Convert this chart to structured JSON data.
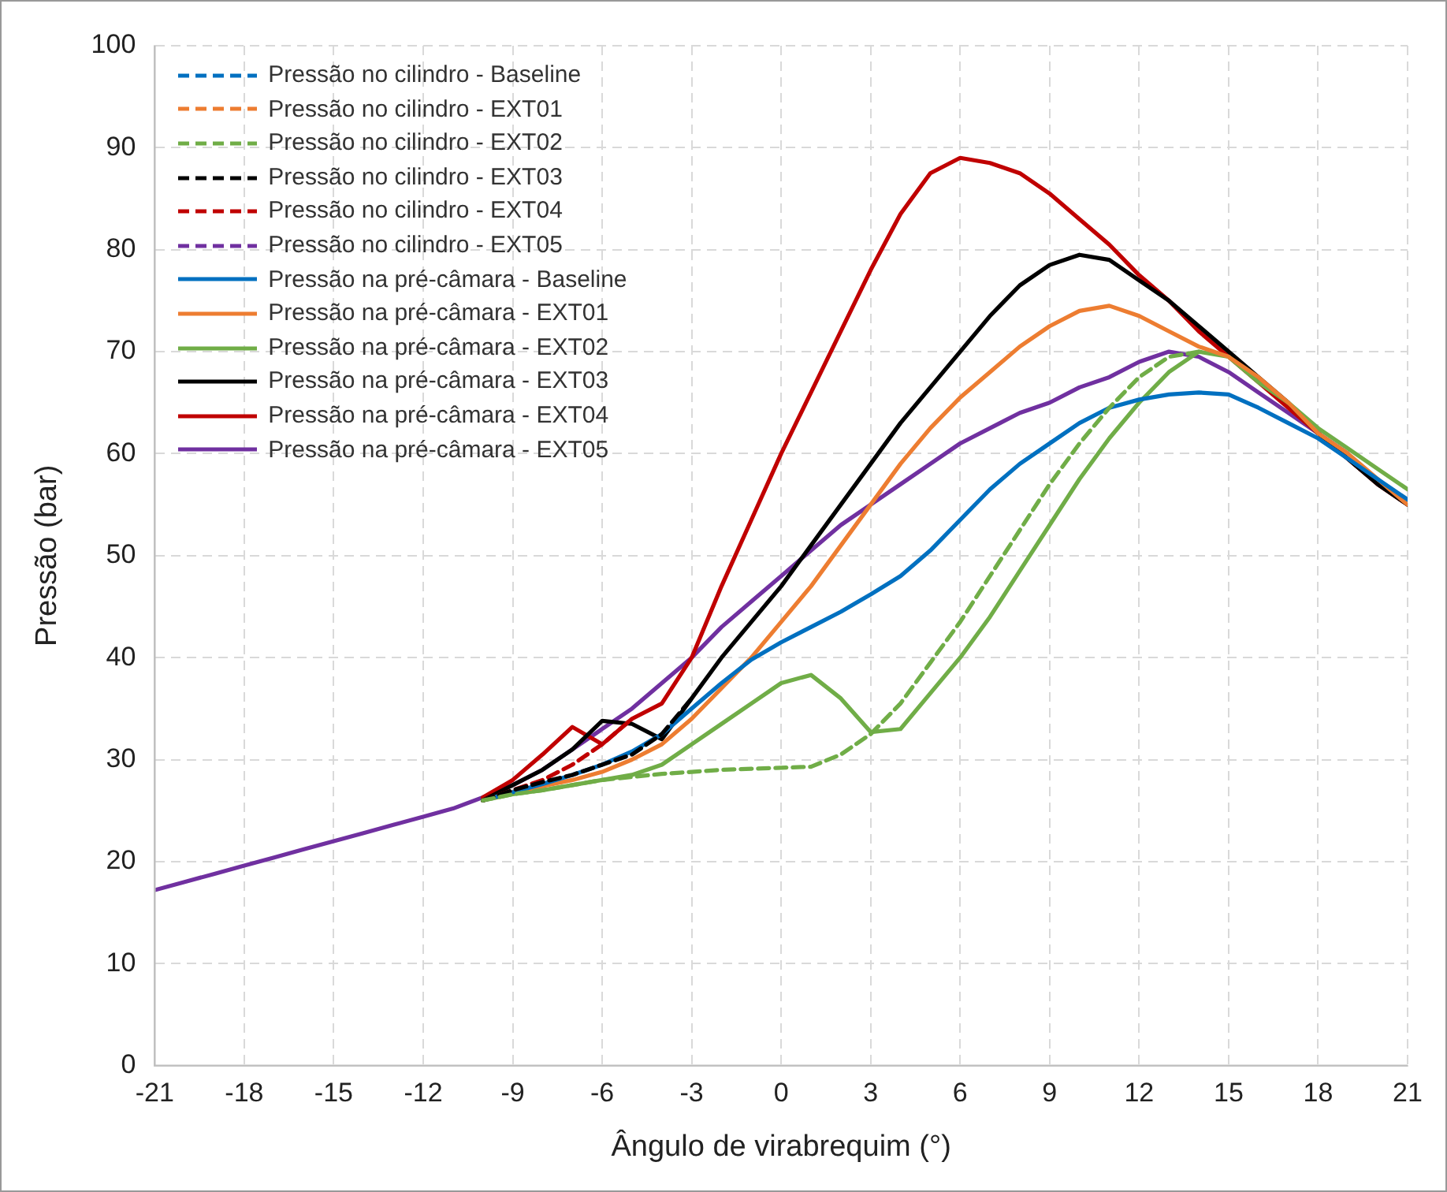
{
  "chart_data": {
    "type": "line",
    "xlabel": "Ângulo de virabrequim (°)",
    "ylabel": "Pressão (bar)",
    "x": [
      -21,
      -20,
      -19,
      -18,
      -17,
      -16,
      -15,
      -14,
      -13,
      -12,
      -11,
      -10,
      -9,
      -8,
      -7,
      -6,
      -5,
      -4,
      -3,
      -2,
      -1,
      0,
      1,
      2,
      3,
      4,
      5,
      6,
      7,
      8,
      9,
      10,
      11,
      12,
      13,
      14,
      15,
      16,
      17,
      18,
      19,
      20,
      21
    ],
    "xlim": [
      -21,
      21
    ],
    "xticks": [
      -21,
      -18,
      -15,
      -12,
      -9,
      -6,
      -3,
      0,
      3,
      6,
      9,
      12,
      15,
      18,
      21
    ],
    "ylim": [
      0,
      100
    ],
    "yticks": [
      0,
      10,
      20,
      30,
      40,
      50,
      60,
      70,
      80,
      90,
      100
    ],
    "grid": true,
    "legend": "top left",
    "marker": "none",
    "series": [
      {
        "name": "Pressão no cilindro - Baseline",
        "color": "#0070c0",
        "line_style": "dashed",
        "values": [
          null,
          null,
          null,
          null,
          null,
          null,
          null,
          null,
          null,
          null,
          null,
          null,
          null,
          null,
          null,
          null,
          null,
          null,
          null,
          null,
          null,
          null,
          null,
          null,
          null,
          null,
          null,
          null,
          null,
          null,
          null,
          null,
          null,
          null,
          null,
          null,
          null,
          null,
          null,
          null,
          null,
          null,
          null
        ]
      },
      {
        "name": "Pressão no cilindro - EXT01",
        "color": "#ed7d31",
        "line_style": "dashed",
        "values": [
          null,
          null,
          null,
          null,
          null,
          null,
          null,
          null,
          null,
          null,
          null,
          null,
          null,
          null,
          null,
          null,
          null,
          null,
          null,
          null,
          null,
          null,
          null,
          null,
          null,
          null,
          null,
          null,
          null,
          null,
          null,
          null,
          null,
          null,
          null,
          null,
          null,
          null,
          null,
          null,
          null,
          null,
          null
        ]
      },
      {
        "name": "Pressão no cilindro - EXT02",
        "color": "#70ad47",
        "line_style": "dashed",
        "values": [
          null,
          null,
          null,
          null,
          null,
          null,
          null,
          null,
          null,
          null,
          null,
          26,
          26.6,
          27,
          27.5,
          28,
          28.3,
          28.6,
          28.8,
          29,
          29.1,
          29.2,
          29.3,
          30.5,
          32.5,
          35.5,
          39.5,
          43.5,
          48,
          52.5,
          57,
          61,
          64.5,
          67.5,
          69.5,
          70,
          null,
          null,
          null,
          null,
          null,
          null,
          null
        ]
      },
      {
        "name": "Pressão no cilindro - EXT03",
        "color": "#000000",
        "line_style": "dashed",
        "values": [
          null,
          null,
          null,
          null,
          null,
          null,
          null,
          null,
          null,
          null,
          null,
          26,
          27,
          27.8,
          28.5,
          29.5,
          30.5,
          32.5,
          36,
          null,
          null,
          null,
          null,
          null,
          null,
          null,
          null,
          null,
          null,
          null,
          null,
          null,
          null,
          null,
          null,
          null,
          null,
          null,
          null,
          null,
          null,
          null,
          null
        ]
      },
      {
        "name": "Pressão no cilindro - EXT04",
        "color": "#c00000",
        "line_style": "dashed",
        "values": [
          null,
          null,
          null,
          null,
          null,
          null,
          null,
          null,
          null,
          null,
          null,
          26,
          27,
          28,
          29.5,
          31.5,
          34,
          null,
          null,
          null,
          null,
          null,
          null,
          null,
          null,
          null,
          null,
          null,
          null,
          null,
          null,
          null,
          null,
          null,
          null,
          null,
          null,
          null,
          null,
          null,
          null,
          null,
          null
        ]
      },
      {
        "name": "Pressão no cilindro - EXT05",
        "color": "#7030a0",
        "line_style": "dashed",
        "values": [
          null,
          null,
          null,
          null,
          null,
          null,
          null,
          null,
          null,
          null,
          null,
          null,
          null,
          null,
          null,
          null,
          null,
          null,
          null,
          null,
          null,
          null,
          null,
          null,
          null,
          null,
          null,
          null,
          null,
          null,
          null,
          null,
          null,
          null,
          null,
          null,
          null,
          null,
          null,
          null,
          null,
          null,
          null
        ]
      },
      {
        "name": "Pressão na pré-câmara - Baseline",
        "color": "#0070c0",
        "line_style": "solid",
        "values": [
          null,
          null,
          null,
          null,
          null,
          null,
          null,
          null,
          null,
          null,
          null,
          26,
          26.8,
          27.6,
          28.5,
          29.5,
          30.8,
          32.5,
          35,
          37.5,
          39.8,
          41.5,
          43,
          44.5,
          46.2,
          48,
          50.5,
          53.5,
          56.5,
          59,
          61,
          63,
          64.5,
          65.3,
          65.8,
          66,
          65.8,
          64.5,
          63,
          61.5,
          59.5,
          57.5,
          55.5
        ]
      },
      {
        "name": "Pressão na pré-câmara - EXT01",
        "color": "#ed7d31",
        "line_style": "solid",
        "values": [
          null,
          null,
          null,
          null,
          null,
          null,
          null,
          null,
          null,
          null,
          null,
          26,
          26.8,
          27.4,
          28,
          28.8,
          30,
          31.5,
          34,
          37,
          40,
          43.5,
          47,
          51,
          55,
          59,
          62.5,
          65.5,
          68,
          70.5,
          72.5,
          74,
          74.5,
          73.5,
          72,
          70.5,
          69.5,
          67.5,
          65,
          62,
          60,
          57.5,
          55
        ]
      },
      {
        "name": "Pressão na pré-câmara - EXT02",
        "color": "#70ad47",
        "line_style": "solid",
        "values": [
          null,
          null,
          null,
          null,
          null,
          null,
          null,
          null,
          null,
          null,
          null,
          26,
          26.6,
          27,
          27.5,
          28,
          28.5,
          29.5,
          31.5,
          33.5,
          35.5,
          37.5,
          38.3,
          36,
          32.7,
          33,
          36.5,
          40,
          44,
          48.5,
          53,
          57.5,
          61.5,
          65,
          68,
          70,
          69.5,
          67,
          65,
          62.5,
          60.5,
          58.5,
          56.5
        ]
      },
      {
        "name": "Pressão na pré-câmara - EXT03",
        "color": "#000000",
        "line_style": "solid",
        "values": [
          null,
          null,
          null,
          null,
          null,
          null,
          null,
          null,
          null,
          null,
          null,
          26,
          27.5,
          29,
          31,
          33.8,
          33.5,
          32,
          36,
          40,
          43.5,
          47,
          51,
          55,
          59,
          63,
          66.5,
          70,
          73.5,
          76.5,
          78.5,
          79.5,
          79,
          77,
          75,
          72.5,
          70,
          67.5,
          65,
          62,
          59.5,
          57,
          55
        ]
      },
      {
        "name": "Pressão na pré-câmara - EXT04",
        "color": "#c00000",
        "line_style": "solid",
        "values": [
          null,
          null,
          null,
          null,
          null,
          null,
          null,
          null,
          null,
          null,
          null,
          26.3,
          28,
          30.5,
          33.2,
          31.5,
          34,
          35.5,
          40,
          47,
          53.5,
          60,
          66,
          72,
          78,
          83.5,
          87.5,
          89,
          88.5,
          87.5,
          85.5,
          83,
          80.5,
          77.5,
          75,
          72,
          69.5,
          67,
          64.5,
          62,
          59.5,
          57,
          55
        ]
      },
      {
        "name": "Pressão na pré-câmara - EXT05",
        "color": "#7030a0",
        "line_style": "solid",
        "values": [
          17.2,
          18,
          18.8,
          19.6,
          20.4,
          21.2,
          22,
          22.8,
          23.6,
          24.4,
          25.2,
          26.3,
          27.5,
          29,
          31,
          33,
          35,
          37.5,
          40,
          43,
          45.5,
          48,
          50.5,
          53,
          55,
          57,
          59,
          61,
          62.5,
          64,
          65,
          66.5,
          67.5,
          69,
          70,
          69.5,
          68,
          66,
          64,
          62,
          60,
          null,
          null
        ]
      }
    ]
  }
}
